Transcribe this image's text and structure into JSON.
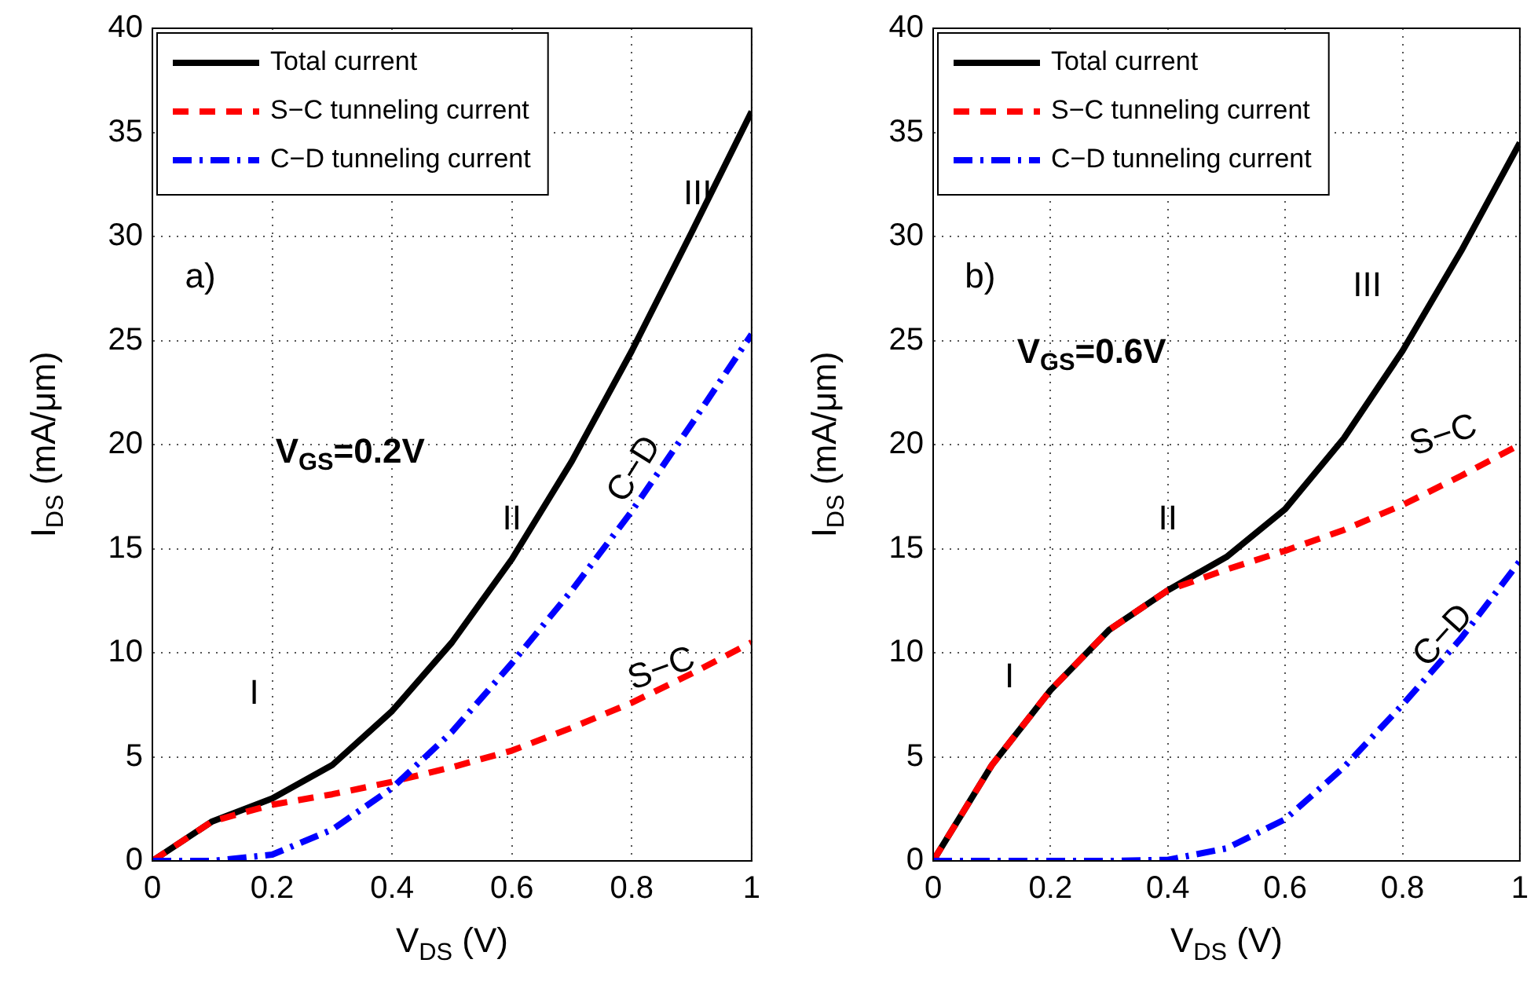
{
  "chart_data": [
    {
      "type": "line",
      "x": [
        0,
        0.1,
        0.2,
        0.3,
        0.4,
        0.5,
        0.6,
        0.7,
        0.8,
        0.9,
        1
      ],
      "xlabel": "V$_{DS}$ (V)",
      "ylabel": "I$_{DS}$ (mA/μm)",
      "xlim": [
        0,
        1
      ],
      "ylim": [
        0,
        40
      ],
      "xticks": [
        0,
        0.2,
        0.4,
        0.6,
        0.8,
        1
      ],
      "yticks": [
        0,
        5,
        10,
        15,
        20,
        25,
        30,
        35,
        40
      ],
      "grid": true,
      "legend": "top left",
      "marker": "none",
      "series": [
        {
          "name": "Total current",
          "color": "#000000",
          "line_style": "solid",
          "values": [
            0,
            1.9,
            3.0,
            4.6,
            7.2,
            10.5,
            14.5,
            19.2,
            24.5,
            30.2,
            36
          ]
        },
        {
          "name": "S−C tunneling current",
          "color": "#ff0000",
          "line_style": "dashed",
          "values": [
            0,
            1.9,
            2.7,
            3.2,
            3.8,
            4.5,
            5.3,
            6.4,
            7.6,
            9.0,
            10.5
          ]
        },
        {
          "name": "C−D tunneling current",
          "color": "#0000ff",
          "line_style": "dashdot",
          "values": [
            0,
            0,
            0.3,
            1.5,
            3.5,
            6.2,
            9.5,
            13.0,
            16.8,
            21.0,
            25.3
          ]
        }
      ],
      "annotations": [
        "a)",
        "V$_{GS}$=0.2V",
        "I",
        "II",
        "III",
        "C−D",
        "S−C"
      ]
    },
    {
      "type": "line",
      "x": [
        0,
        0.1,
        0.2,
        0.3,
        0.4,
        0.5,
        0.6,
        0.7,
        0.8,
        0.9,
        1
      ],
      "xlabel": "V$_{DS}$ (V)",
      "ylabel": "I$_{DS}$ (mA/μm)",
      "xlim": [
        0,
        1
      ],
      "ylim": [
        0,
        40
      ],
      "xticks": [
        0,
        0.2,
        0.4,
        0.6,
        0.8,
        1
      ],
      "yticks": [
        0,
        5,
        10,
        15,
        20,
        25,
        30,
        35,
        40
      ],
      "grid": true,
      "legend": "top left",
      "marker": "none",
      "series": [
        {
          "name": "Total current",
          "color": "#000000",
          "line_style": "solid",
          "values": [
            0,
            4.6,
            8.2,
            11.1,
            13.0,
            14.6,
            16.9,
            20.3,
            24.5,
            29.3,
            34.5
          ]
        },
        {
          "name": "S−C tunneling current",
          "color": "#ff0000",
          "line_style": "dashed",
          "values": [
            0,
            4.6,
            8.2,
            11.1,
            13.0,
            14.0,
            14.9,
            15.9,
            17.1,
            18.5,
            20.0
          ]
        },
        {
          "name": "C−D tunneling current",
          "color": "#0000ff",
          "line_style": "dashdot",
          "values": [
            0,
            0,
            0,
            0,
            0.05,
            0.6,
            2.0,
            4.5,
            7.5,
            10.7,
            14.4
          ]
        }
      ],
      "annotations": [
        "b)",
        "V$_{GS}$=0.6V",
        "I",
        "II",
        "III",
        "S−C",
        "C−D"
      ]
    }
  ]
}
